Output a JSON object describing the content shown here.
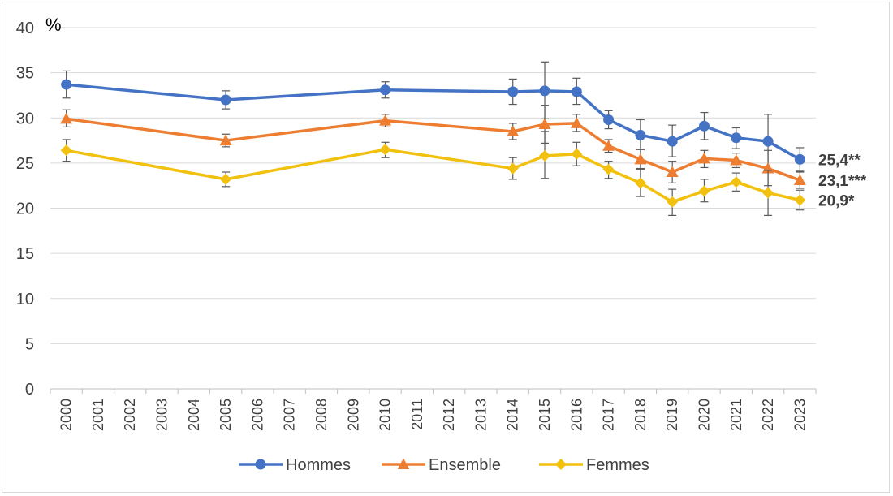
{
  "chart_data": {
    "type": "line",
    "unit_label": "%",
    "ylim": [
      0,
      40
    ],
    "yticks": [
      0,
      5,
      10,
      15,
      20,
      25,
      30,
      35,
      40
    ],
    "categories": [
      "2000",
      "2001",
      "2002",
      "2003",
      "2004",
      "2005",
      "2006",
      "2007",
      "2008",
      "2009",
      "2010",
      "2011",
      "2012",
      "2013",
      "2014",
      "2015",
      "2016",
      "2017",
      "2018",
      "2019",
      "2020",
      "2021",
      "2022",
      "2023"
    ],
    "grid": true,
    "legend_position": "bottom-center",
    "series": [
      {
        "name": "Hommes",
        "color": "#4472c4",
        "marker": "circle",
        "points": [
          {
            "x": "2000",
            "y": 33.7,
            "err_lo": 32.2,
            "err_hi": 35.2
          },
          {
            "x": "2005",
            "y": 32.0,
            "err_lo": 31.0,
            "err_hi": 33.0
          },
          {
            "x": "2010",
            "y": 33.1,
            "err_lo": 32.2,
            "err_hi": 34.0
          },
          {
            "x": "2014",
            "y": 32.9,
            "err_lo": 31.5,
            "err_hi": 34.3
          },
          {
            "x": "2015",
            "y": 33.0,
            "err_lo": 29.9,
            "err_hi": 36.2
          },
          {
            "x": "2016",
            "y": 32.9,
            "err_lo": 31.5,
            "err_hi": 34.4
          },
          {
            "x": "2017",
            "y": 29.8,
            "err_lo": 28.8,
            "err_hi": 30.8
          },
          {
            "x": "2018",
            "y": 28.1,
            "err_lo": 26.5,
            "err_hi": 29.8
          },
          {
            "x": "2019",
            "y": 27.4,
            "err_lo": 25.7,
            "err_hi": 29.2
          },
          {
            "x": "2020",
            "y": 29.1,
            "err_lo": 27.6,
            "err_hi": 30.6
          },
          {
            "x": "2021",
            "y": 27.8,
            "err_lo": 26.6,
            "err_hi": 28.9
          },
          {
            "x": "2022",
            "y": 27.4,
            "err_lo": 24.3,
            "err_hi": 30.4
          },
          {
            "x": "2023",
            "y": 25.4,
            "err_lo": 24.1,
            "err_hi": 26.7
          }
        ],
        "end_label": "25,4**"
      },
      {
        "name": "Ensemble",
        "color": "#ed7d31",
        "marker": "triangle",
        "points": [
          {
            "x": "2000",
            "y": 29.9,
            "err_lo": 29.0,
            "err_hi": 30.9
          },
          {
            "x": "2005",
            "y": 27.5,
            "err_lo": 26.8,
            "err_hi": 28.2
          },
          {
            "x": "2010",
            "y": 29.7,
            "err_lo": 29.0,
            "err_hi": 30.4
          },
          {
            "x": "2014",
            "y": 28.5,
            "err_lo": 27.6,
            "err_hi": 29.4
          },
          {
            "x": "2015",
            "y": 29.3,
            "err_lo": 27.2,
            "err_hi": 31.4
          },
          {
            "x": "2016",
            "y": 29.4,
            "err_lo": 28.5,
            "err_hi": 30.4
          },
          {
            "x": "2017",
            "y": 26.9,
            "err_lo": 26.2,
            "err_hi": 27.6
          },
          {
            "x": "2018",
            "y": 25.4,
            "err_lo": 24.3,
            "err_hi": 26.5
          },
          {
            "x": "2019",
            "y": 24.0,
            "err_lo": 22.8,
            "err_hi": 25.2
          },
          {
            "x": "2020",
            "y": 25.5,
            "err_lo": 24.5,
            "err_hi": 26.4
          },
          {
            "x": "2021",
            "y": 25.3,
            "err_lo": 24.5,
            "err_hi": 26.1
          },
          {
            "x": "2022",
            "y": 24.4,
            "err_lo": 22.5,
            "err_hi": 26.4
          },
          {
            "x": "2023",
            "y": 23.1,
            "err_lo": 22.2,
            "err_hi": 24.0
          }
        ],
        "end_label": "23,1***"
      },
      {
        "name": "Femmes",
        "color": "#f2c10f",
        "marker": "diamond",
        "points": [
          {
            "x": "2000",
            "y": 26.4,
            "err_lo": 25.2,
            "err_hi": 27.6
          },
          {
            "x": "2005",
            "y": 23.2,
            "err_lo": 22.4,
            "err_hi": 24.0
          },
          {
            "x": "2010",
            "y": 26.5,
            "err_lo": 25.6,
            "err_hi": 27.3
          },
          {
            "x": "2014",
            "y": 24.4,
            "err_lo": 23.2,
            "err_hi": 25.6
          },
          {
            "x": "2015",
            "y": 25.8,
            "err_lo": 23.3,
            "err_hi": 28.5
          },
          {
            "x": "2016",
            "y": 26.0,
            "err_lo": 24.7,
            "err_hi": 27.3
          },
          {
            "x": "2017",
            "y": 24.3,
            "err_lo": 23.3,
            "err_hi": 25.2
          },
          {
            "x": "2018",
            "y": 22.8,
            "err_lo": 21.3,
            "err_hi": 24.4
          },
          {
            "x": "2019",
            "y": 20.7,
            "err_lo": 19.2,
            "err_hi": 22.1
          },
          {
            "x": "2020",
            "y": 21.9,
            "err_lo": 20.7,
            "err_hi": 23.2
          },
          {
            "x": "2021",
            "y": 22.9,
            "err_lo": 21.9,
            "err_hi": 23.9
          },
          {
            "x": "2022",
            "y": 21.7,
            "err_lo": 19.2,
            "err_hi": 24.2
          },
          {
            "x": "2023",
            "y": 20.9,
            "err_lo": 19.8,
            "err_hi": 22.0
          }
        ],
        "end_label": "20,9*"
      }
    ]
  }
}
